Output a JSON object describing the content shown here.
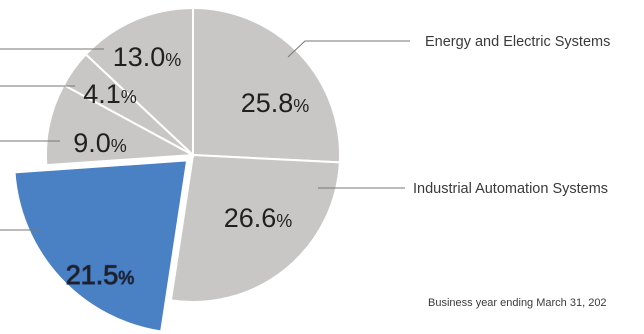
{
  "chart_data": {
    "type": "pie",
    "title": "",
    "note": "Business year ending March 31, 202",
    "slices": [
      {
        "name": "Energy and Electric Systems",
        "value": 25.8,
        "value_label": "25.8",
        "color": "#c9c7c6"
      },
      {
        "name": "Industrial Automation Systems",
        "value": 26.6,
        "value_label": "26.6",
        "color": "#c9c7c6"
      },
      {
        "name": "",
        "value": 21.5,
        "value_label": "21.5",
        "color": "#4a80c4",
        "exploded": true
      },
      {
        "name": "",
        "value": 9.0,
        "value_label": "9.0",
        "color": "#c9c7c6"
      },
      {
        "name": "",
        "value": 4.1,
        "value_label": "4.1",
        "color": "#c9c7c6"
      },
      {
        "name": "",
        "value": 13.0,
        "value_label": "13.0",
        "color": "#c9c7c6"
      }
    ],
    "unit": "%"
  }
}
